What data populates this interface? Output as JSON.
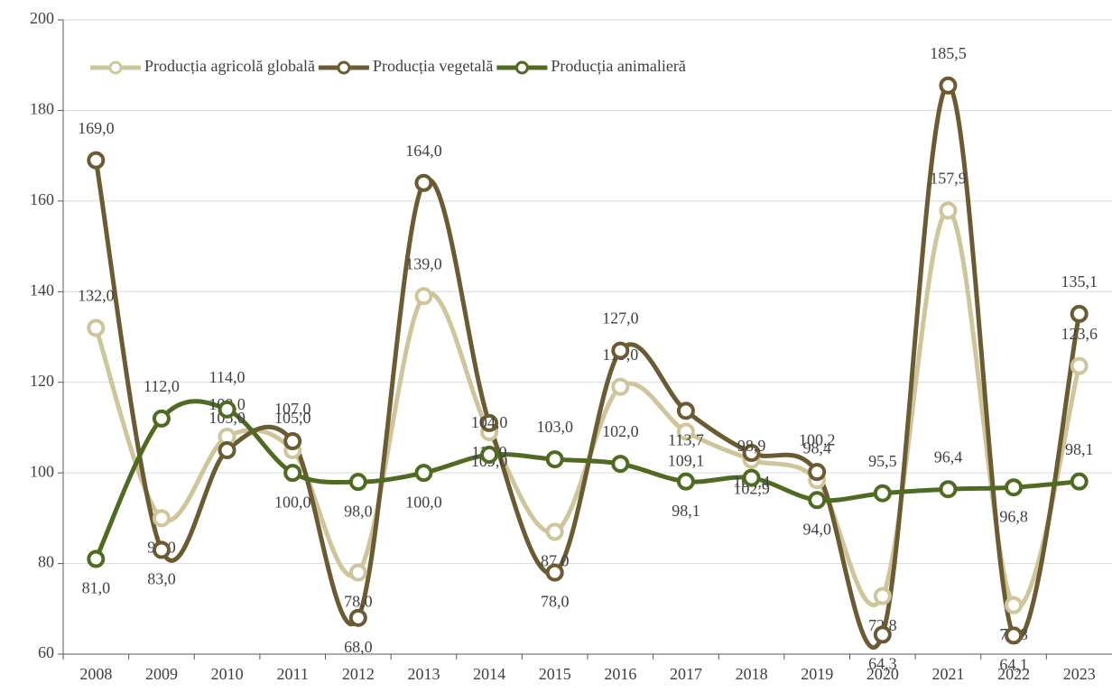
{
  "chart_data": {
    "type": "line",
    "categories": [
      "2008",
      "2009",
      "2010",
      "2011",
      "2012",
      "2013",
      "2014",
      "2015",
      "2016",
      "2017",
      "2018",
      "2019",
      "2020",
      "2021",
      "2022",
      "2023"
    ],
    "series": [
      {
        "name": "Producția agricolă globală",
        "color": "#cfc59b",
        "values": [
          132.0,
          90.0,
          108.0,
          105.0,
          78.0,
          139.0,
          109.0,
          87.0,
          119.0,
          109.1,
          102.9,
          98.4,
          72.8,
          157.9,
          70.8,
          123.6
        ],
        "value_labels": [
          "132,0",
          "90,0",
          "108,0",
          "105,0",
          "78,0",
          "139,0",
          "109,0",
          "87,0",
          "119,0",
          "109,1",
          "102,9",
          "98,4",
          "72,8",
          "157,9",
          "70,8",
          "123,6"
        ]
      },
      {
        "name": "Producția vegetală",
        "color": "#6b5b33",
        "values": [
          169.0,
          83.0,
          105.0,
          107.0,
          68.0,
          164.0,
          111.0,
          78.0,
          127.0,
          113.7,
          104.4,
          100.2,
          64.3,
          185.5,
          64.1,
          135.1
        ],
        "value_labels": [
          "169,0",
          "83,0",
          "105,0",
          "107,0",
          "68,0",
          "164,0",
          "111,0",
          "78,0",
          "127,0",
          "113,7",
          "104,4",
          "100,2",
          "64,3",
          "185,5",
          "64,1",
          "135,1"
        ]
      },
      {
        "name": "Producția animalieră",
        "color": "#4f6b22",
        "values": [
          81.0,
          112.0,
          114.0,
          100.0,
          98.0,
          100.0,
          104.0,
          103.0,
          102.0,
          98.1,
          98.9,
          94.0,
          95.5,
          96.4,
          96.8,
          98.1
        ],
        "value_labels": [
          "81,0",
          "112,0",
          "114,0",
          "100,0",
          "98,0",
          "100,0",
          "104,0",
          "103,0",
          "102,0",
          "98,1",
          "98,9",
          "94,0",
          "95,5",
          "96,4",
          "96,8",
          "98,1"
        ]
      }
    ],
    "ylim": [
      60,
      200
    ],
    "yticks": [
      60,
      80,
      100,
      120,
      140,
      160,
      180,
      200
    ],
    "grid": true,
    "legend": "top-left"
  }
}
